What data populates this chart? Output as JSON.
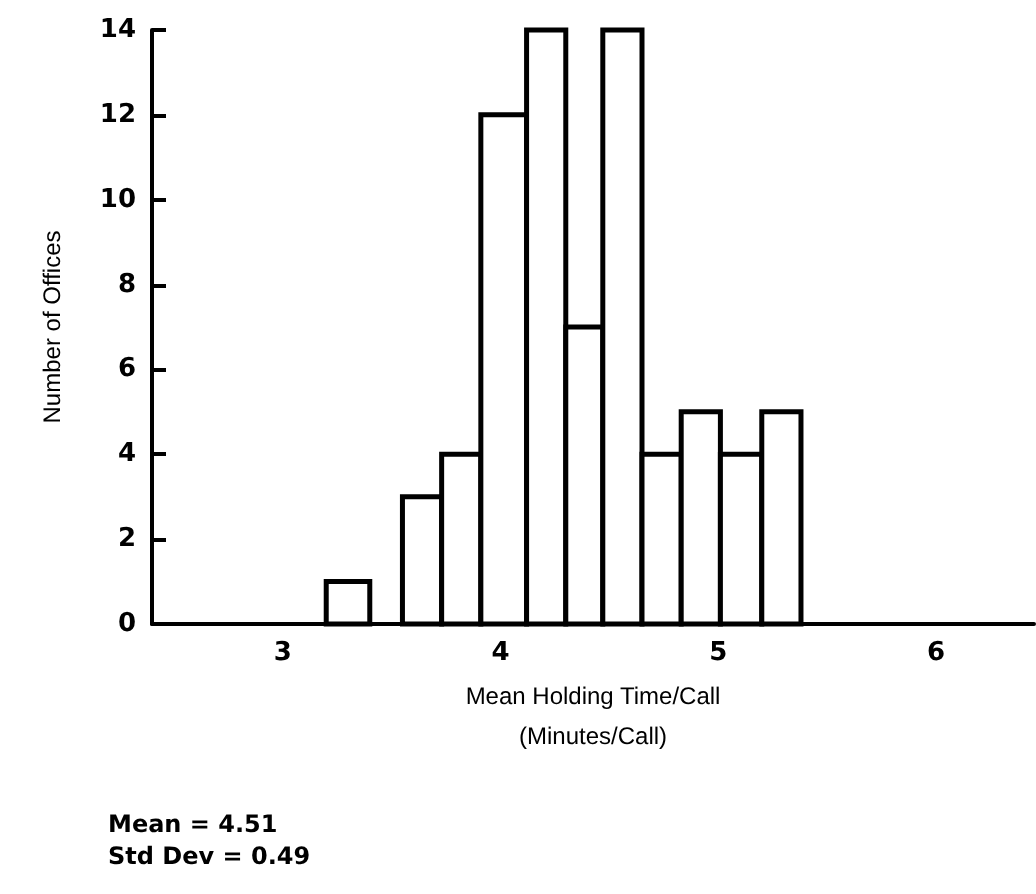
{
  "chart_data": {
    "type": "histogram",
    "xlabel": "Mean Holding Time/Call\n(Minutes/Call)",
    "ylabel": "Number of Offices",
    "bins": [
      3.2,
      3.4,
      3.55,
      3.73,
      3.91,
      4.12,
      4.3,
      4.47,
      4.65,
      4.83,
      5.01,
      5.2,
      5.38
    ],
    "values": [
      1,
      0,
      3,
      4,
      12,
      14,
      7,
      14,
      4,
      5,
      4,
      5
    ],
    "color": "#ffffff",
    "xlim": [
      2.4,
      6.45
    ],
    "xticks": [
      3,
      4,
      5,
      6
    ],
    "ylim": [
      0,
      14
    ],
    "yticks": [
      0,
      2,
      4,
      6,
      8,
      10,
      12,
      14
    ],
    "grid": false,
    "annotations": [
      "Mean = 4.51",
      "Std Dev = 0.49"
    ]
  }
}
